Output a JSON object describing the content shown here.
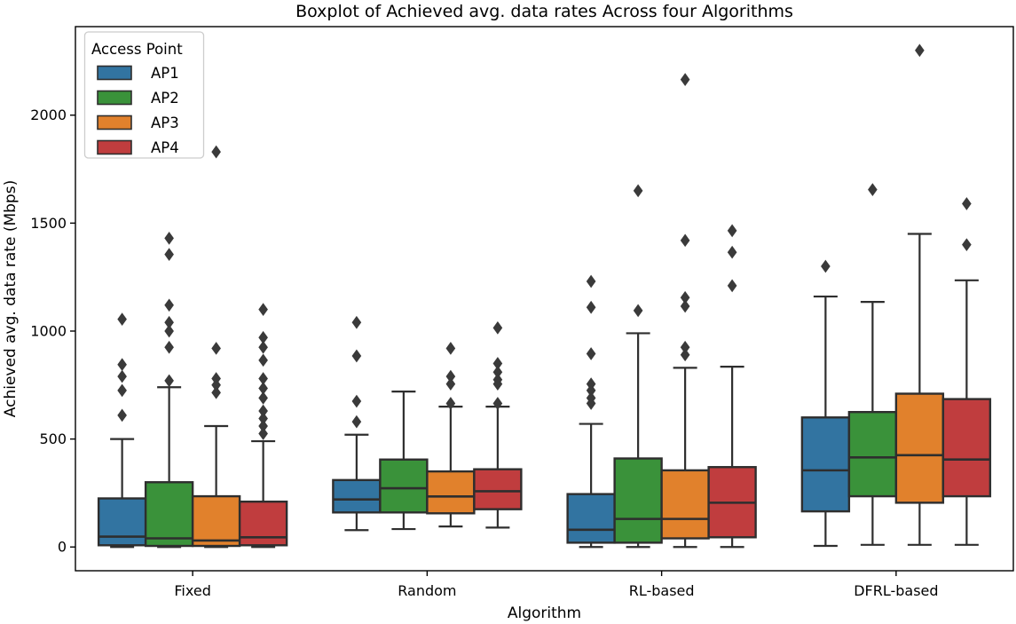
{
  "figure": {
    "title": "Boxplot of Achieved avg. data rates Across four Algorithms"
  },
  "chart_data": {
    "type": "boxplot",
    "title": "Boxplot of Achieved avg. data rates Across four Algorithms",
    "xlabel": "Algorithm",
    "ylabel": "Achieved avg. data rate (Mbps)",
    "categories": [
      "Fixed",
      "Random",
      "RL-based",
      "DFRL-based"
    ],
    "yticks": [
      0,
      500,
      1000,
      1500,
      2000
    ],
    "ylim": [
      -110,
      2410
    ],
    "grid": false,
    "legend": {
      "title": "Access Point",
      "position": "upper left",
      "entries": [
        "AP1",
        "AP2",
        "AP3",
        "AP4"
      ]
    },
    "style": {
      "box_line_color": "#2E2E2E",
      "flier_color": "#3A3A3A",
      "spine_color": "#000000",
      "legend_border_color": "#CCCCCC",
      "background": "#FFFFFF"
    },
    "series": [
      {
        "name": "AP1",
        "color": "#3274A1",
        "boxes": [
          {
            "category": "Fixed",
            "whisker_low": 0,
            "q1": 8,
            "median": 48,
            "q3": 225,
            "whisker_high": 500,
            "outliers": [
              1055,
              845,
              790,
              725,
              610
            ]
          },
          {
            "category": "Random",
            "whisker_low": 78,
            "q1": 160,
            "median": 220,
            "q3": 310,
            "whisker_high": 520,
            "outliers": [
              1040,
              885,
              675,
              580
            ]
          },
          {
            "category": "RL-based",
            "whisker_low": 0,
            "q1": 20,
            "median": 80,
            "q3": 245,
            "whisker_high": 570,
            "outliers": [
              1230,
              1110,
              895,
              755,
              725,
              690,
              665
            ]
          },
          {
            "category": "DFRL-based",
            "whisker_low": 5,
            "q1": 165,
            "median": 355,
            "q3": 600,
            "whisker_high": 1160,
            "outliers": [
              1300
            ]
          }
        ]
      },
      {
        "name": "AP2",
        "color": "#3A923A",
        "boxes": [
          {
            "category": "Fixed",
            "whisker_low": 0,
            "q1": 5,
            "median": 40,
            "q3": 300,
            "whisker_high": 740,
            "outliers": [
              1430,
              1355,
              1120,
              1040,
              1000,
              925,
              770
            ]
          },
          {
            "category": "Random",
            "whisker_low": 83,
            "q1": 160,
            "median": 272,
            "q3": 405,
            "whisker_high": 720,
            "outliers": []
          },
          {
            "category": "RL-based",
            "whisker_low": 0,
            "q1": 20,
            "median": 130,
            "q3": 410,
            "whisker_high": 990,
            "outliers": [
              1650,
              1095
            ]
          },
          {
            "category": "DFRL-based",
            "whisker_low": 10,
            "q1": 235,
            "median": 415,
            "q3": 625,
            "whisker_high": 1135,
            "outliers": [
              1655
            ]
          }
        ]
      },
      {
        "name": "AP3",
        "color": "#E1812C",
        "boxes": [
          {
            "category": "Fixed",
            "whisker_low": 0,
            "q1": 5,
            "median": 30,
            "q3": 235,
            "whisker_high": 560,
            "outliers": [
              1830,
              920,
              780,
              750,
              715
            ]
          },
          {
            "category": "Random",
            "whisker_low": 95,
            "q1": 156,
            "median": 234,
            "q3": 350,
            "whisker_high": 650,
            "outliers": [
              920,
              790,
              755,
              665
            ]
          },
          {
            "category": "RL-based",
            "whisker_low": 0,
            "q1": 40,
            "median": 130,
            "q3": 355,
            "whisker_high": 830,
            "outliers": [
              2165,
              1420,
              1155,
              1115,
              925,
              890
            ]
          },
          {
            "category": "DFRL-based",
            "whisker_low": 10,
            "q1": 205,
            "median": 425,
            "q3": 710,
            "whisker_high": 1450,
            "outliers": [
              2300
            ]
          }
        ]
      },
      {
        "name": "AP4",
        "color": "#C03D3E",
        "boxes": [
          {
            "category": "Fixed",
            "whisker_low": 0,
            "q1": 8,
            "median": 45,
            "q3": 210,
            "whisker_high": 490,
            "outliers": [
              1100,
              970,
              925,
              865,
              780,
              735,
              690,
              630,
              595,
              560,
              525
            ]
          },
          {
            "category": "Random",
            "whisker_low": 90,
            "q1": 175,
            "median": 258,
            "q3": 360,
            "whisker_high": 650,
            "outliers": [
              1015,
              850,
              810,
              775,
              755,
              665
            ]
          },
          {
            "category": "RL-based",
            "whisker_low": 0,
            "q1": 45,
            "median": 205,
            "q3": 370,
            "whisker_high": 835,
            "outliers": [
              1465,
              1365,
              1210
            ]
          },
          {
            "category": "DFRL-based",
            "whisker_low": 10,
            "q1": 235,
            "median": 405,
            "q3": 685,
            "whisker_high": 1235,
            "outliers": [
              1590,
              1400
            ]
          }
        ]
      }
    ]
  }
}
